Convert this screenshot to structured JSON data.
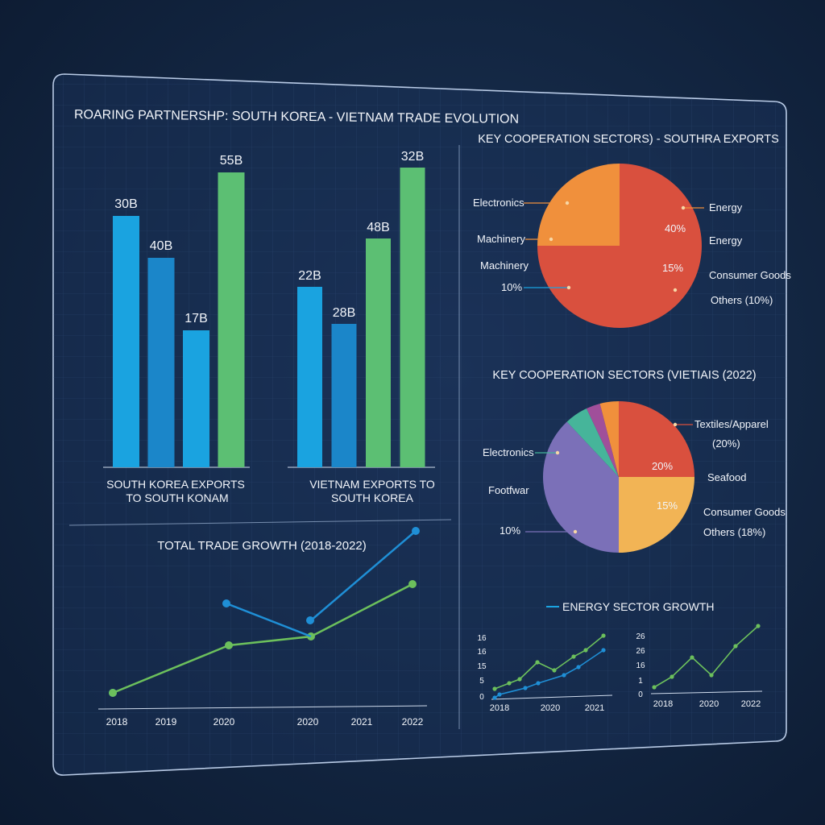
{
  "panel_title": "ROARING PARTNERSHP: SOUTH KOREA - VIETNAM TRADE EVOLUTION",
  "chart_data": [
    {
      "id": "sk_exports",
      "type": "bar",
      "caption": [
        "SOUTH KOREA EXPORTS",
        "TO SOUTH KONAM"
      ],
      "categories": [
        "",
        "",
        "",
        ""
      ],
      "values": [
        30,
        40,
        17,
        55
      ],
      "labels": [
        "30B",
        "40B",
        "17B",
        "55B"
      ],
      "colors": [
        "#1aa3e0",
        "#1b86c9",
        "#1aa3e0",
        "#5cbf73"
      ]
    },
    {
      "id": "vn_exports",
      "type": "bar",
      "caption": [
        "VIETNAM EXPORTS TO",
        "SOUTH KOREA"
      ],
      "categories": [
        "",
        "",
        "",
        ""
      ],
      "values": [
        22,
        28,
        48,
        32
      ],
      "labels": [
        "22B",
        "28B",
        "48B",
        "32B"
      ],
      "colors": [
        "#1aa3e0",
        "#1b86c9",
        "#5cbf73",
        "#5cbf73"
      ]
    },
    {
      "id": "total_trade",
      "type": "line",
      "title": "TOTAL TRADE GROWTH (2018-2022)",
      "x_tick_labels": [
        "2018",
        "2019",
        "2020",
        "2020",
        "2021",
        "2022"
      ],
      "series": [
        {
          "color": "#1f8fd6",
          "values": [
            0,
            58,
            47,
            38,
            0,
            100
          ]
        },
        {
          "color": "#6cc05c",
          "values": [
            0,
            0,
            30,
            34,
            0,
            65
          ]
        }
      ],
      "grid": true
    },
    {
      "id": "sk_sectors",
      "type": "pie",
      "title": "KEY COOPERATION SECTORS) - SOUTHRA EXPORTS",
      "slices": [
        {
          "value": 75,
          "color": "#d9503e"
        },
        {
          "value": 25,
          "color": "#f0903c"
        }
      ],
      "annotations": [
        "Electronics",
        "Machinery",
        "Machinery",
        "10%",
        "Energy",
        "40%",
        "Energy",
        "15%",
        "Consumer Goods",
        "Others (10%)"
      ]
    },
    {
      "id": "vn_sectors",
      "type": "pie",
      "title": "KEY COOPERATION SECTORS (VIETΙAIS (2022)",
      "slices": [
        {
          "value": 25,
          "color": "#d9503e"
        },
        {
          "value": 25,
          "color": "#f2b455"
        },
        {
          "value": 38,
          "color": "#7b70b8"
        },
        {
          "value": 5,
          "color": "#46b59a"
        },
        {
          "value": 3,
          "color": "#a04f9a"
        },
        {
          "value": 4,
          "color": "#f0903c"
        }
      ],
      "annotations": [
        "Textiles/Apparel",
        "(20%)",
        "20%",
        "Seafood",
        "15%",
        "Consumer Goods",
        "Others (18%)",
        "Electronics",
        "Footfwar",
        "10%"
      ]
    },
    {
      "id": "energy_growth_left",
      "type": "line",
      "title": "ENERGY SECTOR GROWTH",
      "y_tick_labels": [
        "0",
        "5",
        "15",
        "16",
        "16"
      ],
      "x_tick_labels": [
        "2018",
        "2020",
        "2021"
      ],
      "series": [
        {
          "color": "#6cc05c",
          "values": [
            12,
            13,
            16,
            17,
            16,
            17,
            18,
            19
          ]
        },
        {
          "color": "#1f8fd6",
          "values": [
            0,
            1,
            2,
            3,
            5,
            6,
            7,
            10
          ]
        }
      ]
    },
    {
      "id": "energy_growth_right",
      "type": "line",
      "y_tick_labels": [
        "0",
        "1",
        "16",
        "26",
        "26"
      ],
      "x_tick_labels": [
        "2018",
        "2020",
        "2022"
      ],
      "series": [
        {
          "color": "#6cc05c",
          "values": [
            0,
            5,
            15,
            5,
            18,
            26
          ]
        }
      ]
    }
  ]
}
